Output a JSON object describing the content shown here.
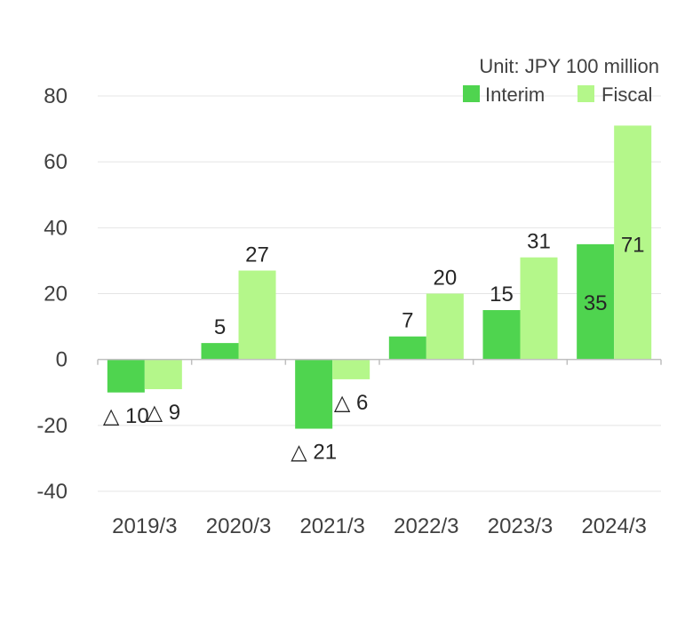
{
  "chart_data": {
    "type": "bar",
    "unit_label": "Unit: JPY 100 million",
    "categories": [
      "2019/3",
      "2020/3",
      "2021/3",
      "2022/3",
      "2023/3",
      "2024/3"
    ],
    "series": [
      {
        "name": "Interim",
        "color": "#4fd44f",
        "values": [
          -10,
          5,
          -21,
          7,
          15,
          35
        ],
        "labels": [
          "△ 10",
          "5",
          "△ 21",
          "7",
          "15",
          "35"
        ]
      },
      {
        "name": "Fiscal",
        "color": "#b4f78a",
        "values": [
          -9,
          27,
          -6,
          20,
          31,
          71
        ],
        "labels": [
          "△ 9",
          "27",
          "△ 6",
          "20",
          "31",
          "71"
        ]
      }
    ],
    "ylim": [
      -40,
      80
    ],
    "yticks": [
      "80",
      "60",
      "40",
      "20",
      "0",
      "-20",
      "-40"
    ],
    "ytick_values": [
      80,
      60,
      40,
      20,
      0,
      -20,
      -40
    ],
    "grid": true,
    "legend_position": "top-right"
  }
}
